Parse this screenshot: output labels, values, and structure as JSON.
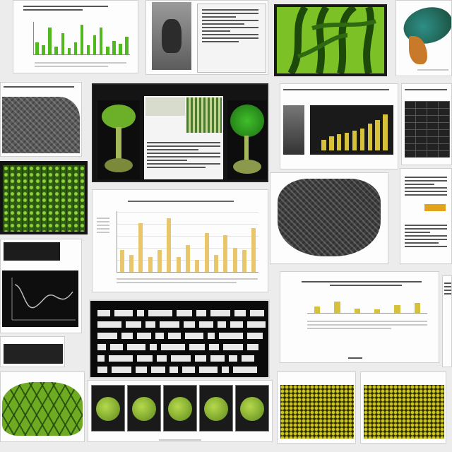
{
  "collage": {
    "description_tiles": [
      "green-bar-chart",
      "fossil-photo",
      "document-scan",
      "green-vein-leaf",
      "teal-fish",
      "gray-texture",
      "leaf-cutaway-panel",
      "yellow-bar-chart-dark",
      "green-mesh",
      "light-bar-chart",
      "armored-shell",
      "dark-line-chart",
      "dark-text-table",
      "yellow-dot-chart",
      "green-tiles",
      "green-dish-row",
      "yellow-mesh-left",
      "yellow-mesh-right"
    ],
    "colors": {
      "green": "#52b81f",
      "yellow": "#e8c66a",
      "dark": "#141414",
      "accent_yellow": "#d6c23a"
    }
  },
  "chart_data": [
    {
      "type": "bar",
      "title": "",
      "values": [
        18,
        14,
        40,
        12,
        32,
        10,
        18,
        44,
        14,
        28,
        40,
        12,
        20,
        16,
        26
      ]
    },
    {
      "type": "bar",
      "title": "",
      "values": [
        18,
        14,
        40,
        12,
        18,
        44,
        12,
        22,
        10,
        32,
        14,
        30,
        20,
        18,
        36
      ],
      "ylim": [
        0,
        50
      ]
    },
    {
      "type": "bar",
      "title": "",
      "values": [
        14,
        26,
        10,
        8,
        18,
        22
      ]
    },
    {
      "type": "bar",
      "title": "",
      "values": [
        12,
        16,
        18,
        20,
        22,
        24,
        30,
        34,
        40
      ]
    }
  ]
}
